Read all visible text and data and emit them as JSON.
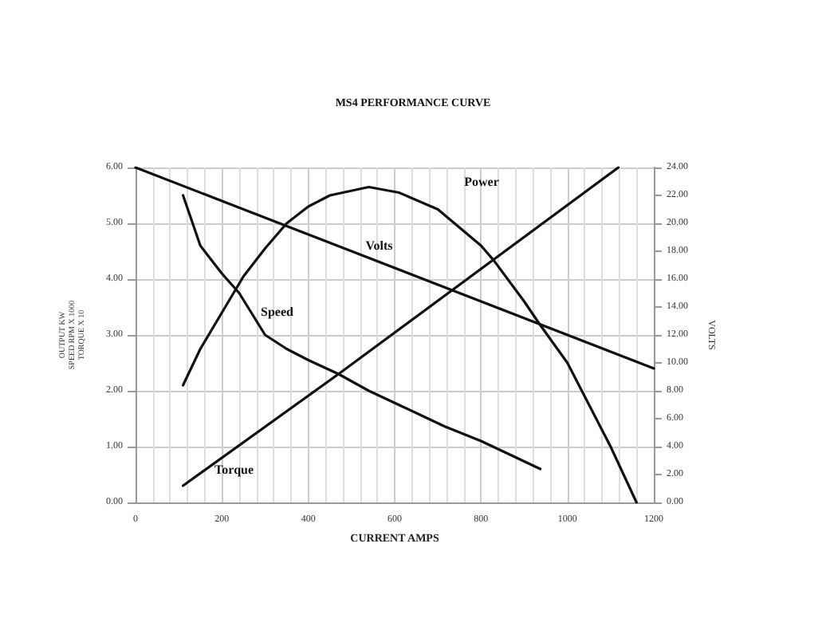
{
  "chart_data": {
    "type": "line",
    "title": "MS4 PERFORMANCE CURVE",
    "xlabel": "CURRENT AMPS",
    "ylabel": "OUTPUT KW\nSPEED RPM X 1000\nTORQUE X 10",
    "y2label": "VOLTS",
    "xlim": [
      0,
      1200
    ],
    "xticks": [
      0,
      200,
      400,
      600,
      800,
      1000,
      1200
    ],
    "ylim": [
      0,
      6
    ],
    "yticks": [
      {
        "value": 0,
        "label": "0.00"
      },
      {
        "value": 1,
        "label": "1.00"
      },
      {
        "value": 2,
        "label": "2.00"
      },
      {
        "value": 3,
        "label": "3.00"
      },
      {
        "value": 4,
        "label": "4.00"
      },
      {
        "value": 5,
        "label": "5.00"
      },
      {
        "value": 6,
        "label": "6.00"
      }
    ],
    "y2lim": [
      0,
      24
    ],
    "y2ticks": [
      {
        "value": 0,
        "label": "0.00"
      },
      {
        "value": 2,
        "label": "2.00"
      },
      {
        "value": 4,
        "label": "4.00"
      },
      {
        "value": 6,
        "label": "6.00"
      },
      {
        "value": 8,
        "label": "8.00"
      },
      {
        "value": 10,
        "label": "10.00"
      },
      {
        "value": 12,
        "label": "12.00"
      },
      {
        "value": 14,
        "label": "14.00"
      },
      {
        "value": 16,
        "label": "16.00"
      },
      {
        "value": 18,
        "label": "18.00"
      },
      {
        "value": 20,
        "label": "20.00"
      },
      {
        "value": 22,
        "label": "22.00"
      },
      {
        "value": 24,
        "label": "24.00"
      }
    ],
    "grid": true,
    "marker": "none",
    "line_style": "solid",
    "series": [
      {
        "name": "Power",
        "color": "#111111",
        "x": [
          110,
          150,
          200,
          250,
          300,
          350,
          400,
          450,
          540,
          610,
          700,
          800,
          830,
          900,
          935,
          1000,
          1100,
          1160
        ],
        "values": [
          2.1,
          2.75,
          3.4,
          4.05,
          4.55,
          5.0,
          5.3,
          5.5,
          5.65,
          5.55,
          5.25,
          4.6,
          4.33,
          3.6,
          3.2,
          2.5,
          1.0,
          0
        ]
      },
      {
        "name": "Speed",
        "color": "#111111",
        "x": [
          110,
          150,
          200,
          240,
          300,
          350,
          400,
          470,
          540,
          609,
          716,
          800,
          937
        ],
        "values": [
          5.5,
          4.6,
          4.1,
          3.75,
          3.0,
          2.75,
          2.55,
          2.3,
          2.0,
          1.75,
          1.36,
          1.1,
          0.6
        ]
      },
      {
        "name": "Torque",
        "color": "#111111",
        "x": [
          110,
          470,
          1118
        ],
        "values": [
          0.3,
          2.3,
          6.0
        ]
      },
      {
        "name": "Volts",
        "color": "#111111",
        "axis": "y2",
        "x": [
          0,
          1200
        ],
        "values": [
          24,
          9.6
        ]
      }
    ]
  }
}
